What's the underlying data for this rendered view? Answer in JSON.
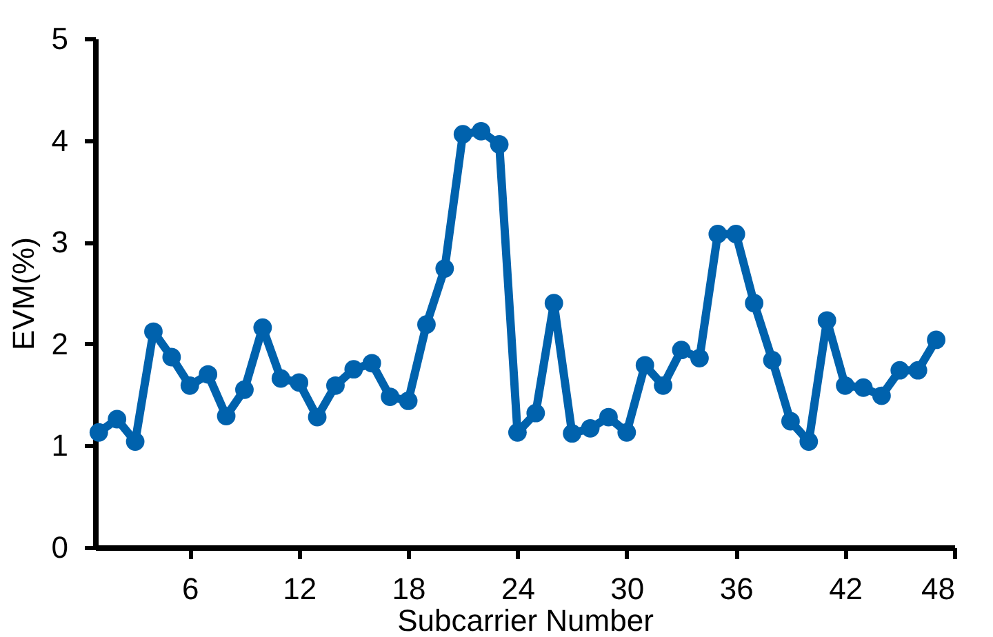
{
  "chart_data": {
    "type": "line",
    "xlabel": "Subcarrier Number",
    "ylabel": "EVM(%)",
    "x": [
      1,
      2,
      3,
      4,
      5,
      6,
      7,
      8,
      9,
      10,
      11,
      12,
      13,
      14,
      15,
      16,
      17,
      18,
      19,
      20,
      21,
      22,
      23,
      24,
      25,
      26,
      27,
      28,
      29,
      30,
      31,
      32,
      33,
      34,
      35,
      36,
      37,
      38,
      39,
      40,
      41,
      42,
      43,
      44,
      45,
      46,
      47
    ],
    "series": [
      {
        "color": "#0062ad",
        "values": [
          1.13,
          1.26,
          1.04,
          2.12,
          1.87,
          1.59,
          1.7,
          1.29,
          1.55,
          2.16,
          1.66,
          1.62,
          1.28,
          1.59,
          1.75,
          1.81,
          1.48,
          1.44,
          2.19,
          2.74,
          4.06,
          4.09,
          3.96,
          1.13,
          1.32,
          2.4,
          1.12,
          1.17,
          1.28,
          1.13,
          1.79,
          1.59,
          1.94,
          1.86,
          3.08,
          3.08,
          2.4,
          1.84,
          1.24,
          1.04,
          2.23,
          1.59,
          1.57,
          1.49,
          1.74,
          1.74,
          2.04
        ]
      }
    ],
    "xlim": [
      0.8,
      48
    ],
    "xticks": [
      6,
      12,
      18,
      24,
      30,
      36,
      42,
      48
    ],
    "ylim": [
      0,
      5
    ],
    "yticks": [
      0,
      1,
      2,
      3,
      4,
      5
    ],
    "grid": false,
    "marker": "circle",
    "line_style": "solid"
  }
}
